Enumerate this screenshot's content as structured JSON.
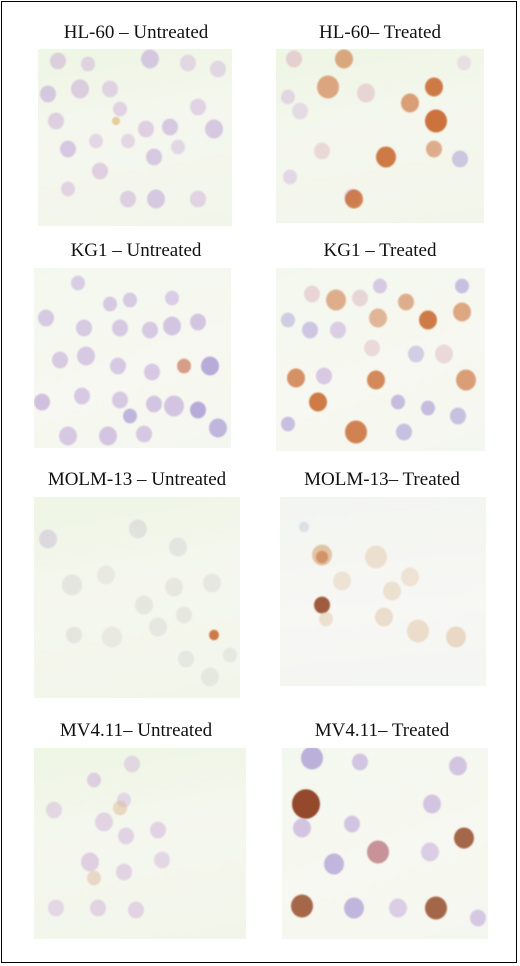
{
  "panels": [
    {
      "id": "hl60-untreated",
      "label": "HL-60 – Untreated"
    },
    {
      "id": "hl60-treated",
      "label": "HL-60– Treated"
    },
    {
      "id": "kg1-untreated",
      "label": "KG1 – Untreated"
    },
    {
      "id": "kg1-treated",
      "label": "KG1 – Treated"
    },
    {
      "id": "molm13-untreated",
      "label": "MOLM-13 – Untreated"
    },
    {
      "id": "molm13-treated",
      "label": "MOLM-13– Treated"
    },
    {
      "id": "mv411-untreated",
      "label": "MV4.11– Untreated"
    },
    {
      "id": "mv411-treated",
      "label": "MV4.11– Treated"
    }
  ]
}
